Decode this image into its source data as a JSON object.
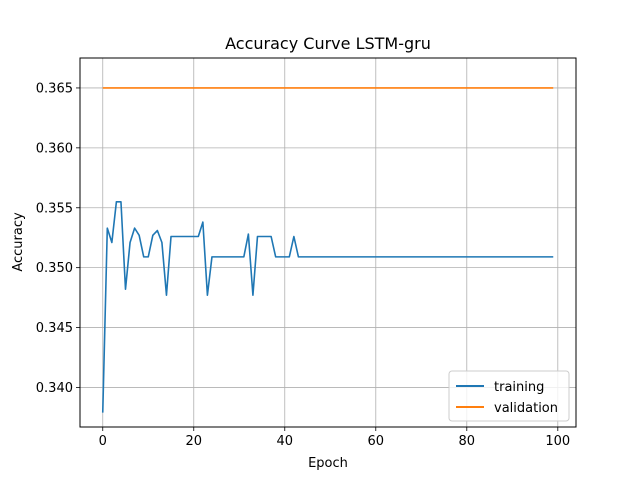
{
  "chart_data": {
    "type": "line",
    "title": "Accuracy Curve LSTM-gru",
    "xlabel": "Epoch",
    "ylabel": "Accuracy",
    "xlim": [
      -5,
      104
    ],
    "ylim": [
      0.3367,
      0.3675
    ],
    "xticks": [
      0,
      20,
      40,
      60,
      80,
      100
    ],
    "yticks": [
      0.34,
      0.345,
      0.35,
      0.355,
      0.36,
      0.365
    ],
    "xtick_labels": [
      "0",
      "20",
      "40",
      "60",
      "80",
      "100"
    ],
    "ytick_labels": [
      "0.340",
      "0.345",
      "0.350",
      "0.355",
      "0.360",
      "0.365"
    ],
    "grid": true,
    "legend_position": "lower-right",
    "series": [
      {
        "name": "training",
        "color": "#1f77b4",
        "x": [
          0,
          1,
          2,
          3,
          4,
          5,
          6,
          7,
          8,
          9,
          10,
          11,
          12,
          13,
          14,
          15,
          16,
          17,
          18,
          19,
          20,
          21,
          22,
          23,
          24,
          25,
          26,
          27,
          28,
          29,
          30,
          31,
          32,
          33,
          34,
          35,
          36,
          37,
          38,
          39,
          40,
          41,
          42,
          43,
          44,
          45,
          46,
          47,
          48,
          49,
          50,
          51,
          52,
          53,
          54,
          55,
          56,
          57,
          58,
          59,
          60,
          61,
          62,
          63,
          64,
          65,
          66,
          67,
          68,
          69,
          70,
          71,
          72,
          73,
          74,
          75,
          76,
          77,
          78,
          79,
          80,
          81,
          82,
          83,
          84,
          85,
          86,
          87,
          88,
          89,
          90,
          91,
          92,
          93,
          94,
          95,
          96,
          97,
          98,
          99
        ],
        "values": [
          0.3379,
          0.3533,
          0.3521,
          0.3555,
          0.3555,
          0.3482,
          0.3521,
          0.3533,
          0.3527,
          0.3509,
          0.3509,
          0.3527,
          0.3531,
          0.3521,
          0.3477,
          0.3526,
          0.3526,
          0.3526,
          0.3526,
          0.3526,
          0.3526,
          0.3526,
          0.3538,
          0.3477,
          0.3509,
          0.3509,
          0.3509,
          0.3509,
          0.3509,
          0.3509,
          0.3509,
          0.3509,
          0.3528,
          0.3477,
          0.3526,
          0.3526,
          0.3526,
          0.3526,
          0.3509,
          0.3509,
          0.3509,
          0.3509,
          0.3526,
          0.3509,
          0.3509,
          0.3509,
          0.3509,
          0.3509,
          0.3509,
          0.3509,
          0.3509,
          0.3509,
          0.3509,
          0.3509,
          0.3509,
          0.3509,
          0.3509,
          0.3509,
          0.3509,
          0.3509,
          0.3509,
          0.3509,
          0.3509,
          0.3509,
          0.3509,
          0.3509,
          0.3509,
          0.3509,
          0.3509,
          0.3509,
          0.3509,
          0.3509,
          0.3509,
          0.3509,
          0.3509,
          0.3509,
          0.3509,
          0.3509,
          0.3509,
          0.3509,
          0.3509,
          0.3509,
          0.3509,
          0.3509,
          0.3509,
          0.3509,
          0.3509,
          0.3509,
          0.3509,
          0.3509,
          0.3509,
          0.3509,
          0.3509,
          0.3509,
          0.3509,
          0.3509,
          0.3509,
          0.3509,
          0.3509,
          0.3509
        ]
      },
      {
        "name": "validation",
        "color": "#ff7f0e",
        "x": [
          0,
          99
        ],
        "values": [
          0.365,
          0.365
        ]
      }
    ]
  }
}
